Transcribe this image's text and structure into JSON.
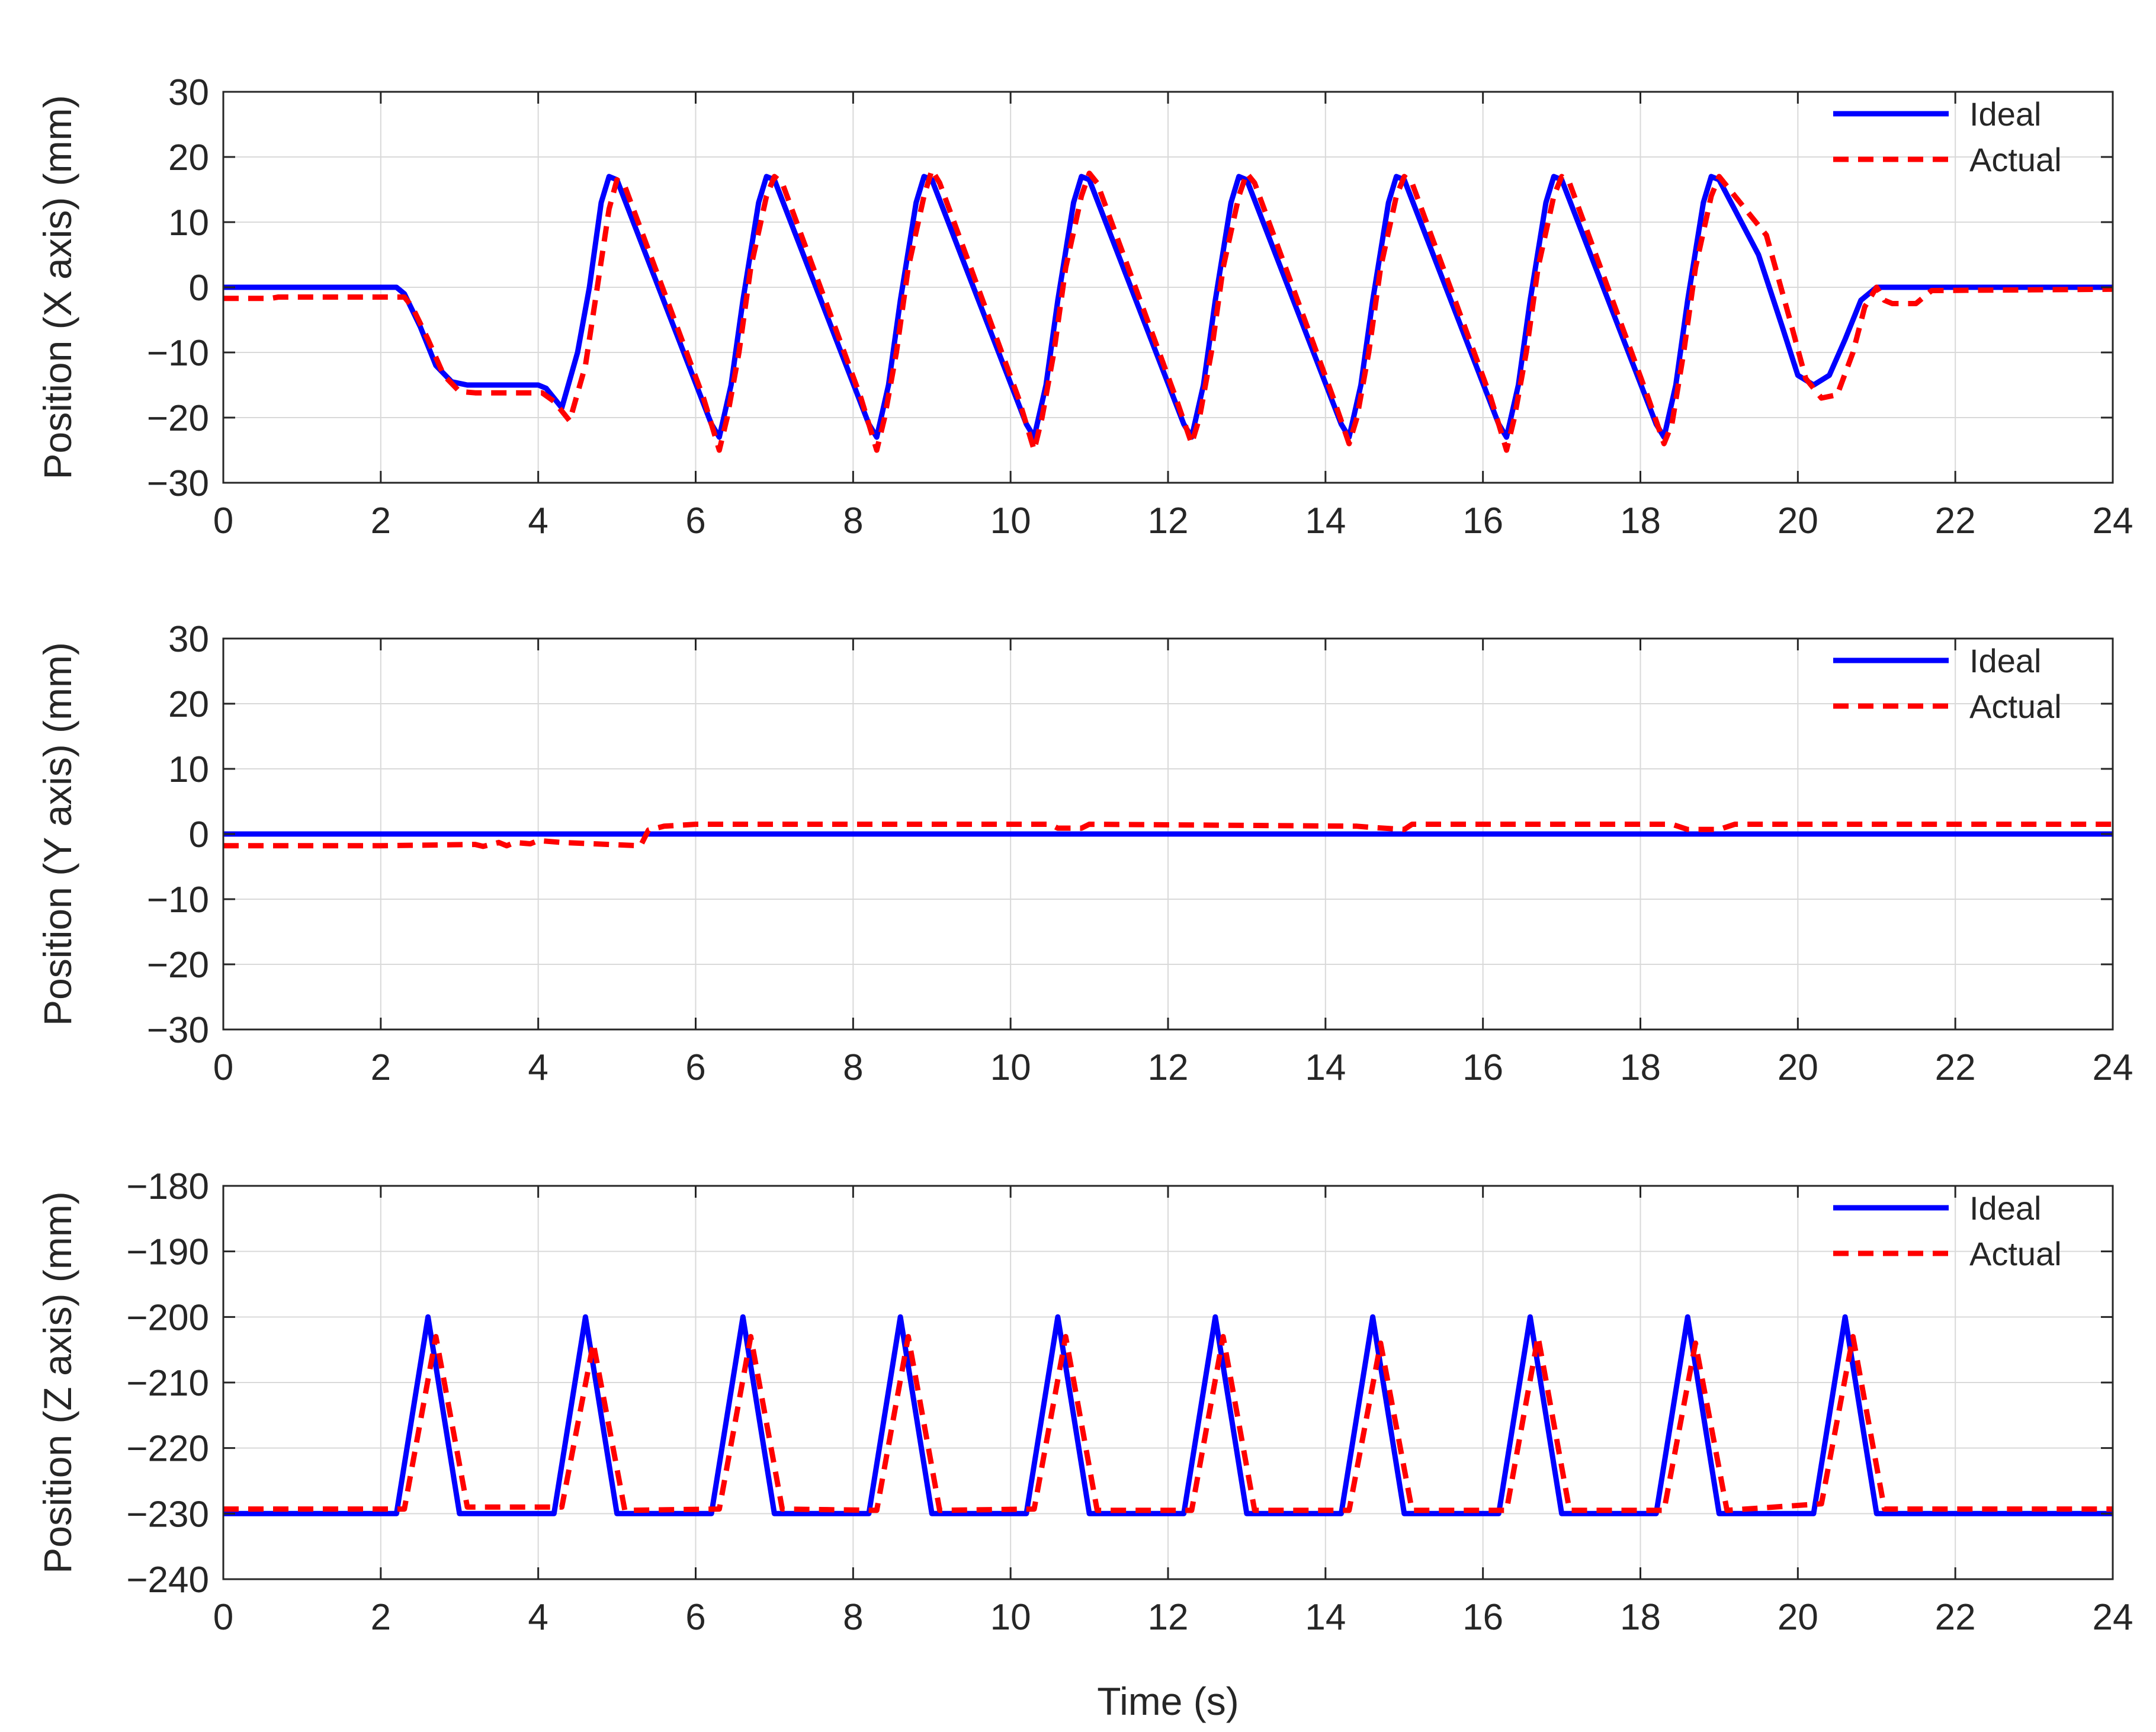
{
  "figure": {
    "xlabel": "Time (s)"
  },
  "colors": {
    "ideal": "#0000ff",
    "actual": "#ff0000",
    "grid": "#d9d9d9",
    "axis": "#262626"
  },
  "chart_data": [
    {
      "type": "line",
      "title": "",
      "xlabel": "",
      "ylabel": "Position (X axis) (mm)",
      "xlim": [
        0,
        24
      ],
      "ylim": [
        -30,
        30
      ],
      "xticks": [
        0,
        2,
        4,
        6,
        8,
        10,
        12,
        14,
        16,
        18,
        20,
        22,
        24
      ],
      "yticks": [
        30,
        20,
        10,
        0,
        -10,
        -20,
        -30
      ],
      "legend": [
        "Ideal",
        "Actual"
      ],
      "legend_position": "top-right",
      "grid": true,
      "series": [
        {
          "name": "Ideal",
          "style": "solid",
          "x": [
            0,
            2.2,
            2.3,
            2.5,
            2.7,
            2.9,
            3.1,
            4.0,
            4.1,
            4.3,
            4.5,
            4.65,
            4.8,
            4.9,
            5.0,
            6.2,
            6.3,
            6.45,
            6.6,
            6.8,
            6.9,
            7.0,
            8.2,
            8.3,
            8.45,
            8.6,
            8.8,
            8.9,
            9.0,
            10.2,
            10.3,
            10.45,
            10.6,
            10.8,
            10.9,
            11.0,
            12.2,
            12.3,
            12.45,
            12.6,
            12.8,
            12.9,
            13.0,
            14.2,
            14.3,
            14.45,
            14.6,
            14.8,
            14.9,
            15.0,
            16.2,
            16.3,
            16.45,
            16.6,
            16.8,
            16.9,
            17.0,
            18.2,
            18.3,
            18.45,
            18.6,
            18.8,
            18.9,
            19.0,
            19.5,
            19.8,
            20.0,
            20.2,
            20.4,
            20.6,
            20.8,
            21.0,
            24
          ],
          "y": [
            0,
            0,
            -1,
            -6,
            -12,
            -14.5,
            -15,
            -15,
            -15.5,
            -18.5,
            -10,
            0,
            13,
            17,
            16.5,
            -21,
            -23,
            -15,
            -2,
            13,
            17,
            16.5,
            -21,
            -23,
            -15,
            -2,
            13,
            17,
            16.5,
            -21,
            -23,
            -15,
            -2,
            13,
            17,
            16.5,
            -21,
            -23,
            -15,
            -2,
            13,
            17,
            16.5,
            -21,
            -23,
            -15,
            -2,
            13,
            17,
            16.5,
            -21,
            -23,
            -15,
            -2,
            13,
            17,
            16.5,
            -21,
            -23,
            -15,
            -2,
            13,
            17,
            16.5,
            5,
            -6,
            -13.5,
            -15,
            -13.5,
            -8,
            -2,
            0,
            0
          ]
        },
        {
          "name": "Actual",
          "style": "dashed",
          "x": [
            0,
            0.6,
            0.7,
            2.3,
            2.4,
            2.6,
            2.8,
            3.0,
            3.2,
            4.05,
            4.2,
            4.4,
            4.6,
            4.75,
            4.9,
            5.0,
            5.1,
            6.1,
            6.3,
            6.4,
            6.55,
            6.7,
            6.9,
            7.0,
            7.1,
            8.1,
            8.3,
            8.4,
            8.55,
            8.7,
            8.9,
            9.0,
            9.1,
            10.1,
            10.3,
            10.4,
            10.55,
            10.7,
            10.9,
            11.0,
            11.1,
            12.1,
            12.3,
            12.4,
            12.55,
            12.7,
            12.9,
            13.0,
            13.1,
            14.1,
            14.3,
            14.4,
            14.55,
            14.7,
            14.9,
            15.0,
            15.1,
            16.1,
            16.3,
            16.4,
            16.55,
            16.7,
            16.9,
            17.0,
            17.1,
            18.1,
            18.3,
            18.4,
            18.55,
            18.7,
            18.9,
            19.0,
            19.6,
            19.9,
            20.1,
            20.3,
            20.5,
            20.7,
            20.85,
            21.0,
            21.1,
            21.2,
            21.5,
            21.7,
            24
          ],
          "y": [
            -1.7,
            -1.7,
            -1.5,
            -1.5,
            -3,
            -8,
            -13.5,
            -16,
            -16.2,
            -16.2,
            -17.5,
            -20.5,
            -12,
            0,
            12,
            16.5,
            15.5,
            -17,
            -25,
            -20,
            -10,
            3,
            14,
            17,
            16,
            -17,
            -25,
            -20,
            -10,
            3,
            14,
            18,
            16,
            -17,
            -25,
            -20,
            -10,
            3,
            14,
            17.5,
            16,
            -17,
            -24,
            -20,
            -10,
            3,
            14,
            17.5,
            16,
            -17,
            -24,
            -20,
            -10,
            3,
            14,
            17,
            16,
            -17,
            -25,
            -20,
            -10,
            3,
            14,
            17,
            16,
            -17,
            -24,
            -21,
            -10,
            3,
            14,
            17,
            8,
            -5,
            -14,
            -17,
            -16.5,
            -10,
            -3,
            0,
            -2,
            -2.5,
            -2.5,
            -0.5,
            -0.3
          ]
        }
      ]
    },
    {
      "type": "line",
      "title": "",
      "xlabel": "",
      "ylabel": "Position (Y axis) (mm)",
      "xlim": [
        0,
        24
      ],
      "ylim": [
        -30,
        30
      ],
      "xticks": [
        0,
        2,
        4,
        6,
        8,
        10,
        12,
        14,
        16,
        18,
        20,
        22,
        24
      ],
      "yticks": [
        30,
        20,
        10,
        0,
        -10,
        -20,
        -30
      ],
      "legend": [
        "Ideal",
        "Actual"
      ],
      "legend_position": "top-right",
      "grid": true,
      "series": [
        {
          "name": "Ideal",
          "style": "solid",
          "x": [
            0,
            24
          ],
          "y": [
            0,
            0
          ]
        },
        {
          "name": "Actual",
          "style": "dashed",
          "x": [
            0,
            2.0,
            3.2,
            3.3,
            3.5,
            3.6,
            3.7,
            3.9,
            4.0,
            4.3,
            5.3,
            5.4,
            5.6,
            6.0,
            10.5,
            10.6,
            10.9,
            11.0,
            14.4,
            14.6,
            15.0,
            15.1,
            18.4,
            18.6,
            18.8,
            19.0,
            19.2,
            24
          ],
          "y": [
            -1.8,
            -1.8,
            -1.6,
            -1.9,
            -1.3,
            -1.8,
            -1.3,
            -1.5,
            -1,
            -1.3,
            -1.8,
            0.6,
            1.2,
            1.5,
            1.5,
            0.9,
            0.9,
            1.5,
            1.2,
            1.0,
            0.7,
            1.5,
            1.5,
            0.7,
            0.7,
            0.7,
            1.5,
            1.5
          ]
        }
      ]
    },
    {
      "type": "line",
      "title": "",
      "xlabel": "Time (s)",
      "ylabel": "Position (Z axis) (mm)",
      "xlim": [
        0,
        24
      ],
      "ylim": [
        -240,
        -180
      ],
      "xticks": [
        0,
        2,
        4,
        6,
        8,
        10,
        12,
        14,
        16,
        18,
        20,
        22,
        24
      ],
      "yticks": [
        -180,
        -190,
        -200,
        -210,
        -220,
        -230,
        -240
      ],
      "legend": [
        "Ideal",
        "Actual"
      ],
      "legend_position": "top-right",
      "grid": true,
      "series": [
        {
          "name": "Ideal",
          "style": "solid",
          "x": [
            0,
            2.2,
            2.6,
            3.0,
            4.2,
            4.6,
            5.0,
            6.2,
            6.6,
            7.0,
            8.2,
            8.6,
            9.0,
            10.2,
            10.6,
            11.0,
            12.2,
            12.6,
            13.0,
            14.2,
            14.6,
            15.0,
            16.2,
            16.6,
            17.0,
            18.2,
            18.6,
            19.0,
            20.2,
            20.6,
            21.0,
            24
          ],
          "y": [
            -230,
            -230,
            -200,
            -230,
            -230,
            -200,
            -230,
            -230,
            -200,
            -230,
            -230,
            -200,
            -230,
            -230,
            -200,
            -230,
            -230,
            -200,
            -230,
            -230,
            -200,
            -230,
            -230,
            -200,
            -230,
            -230,
            -200,
            -230,
            -230,
            -200,
            -230,
            -230
          ]
        },
        {
          "name": "Actual",
          "style": "dashed",
          "x": [
            0,
            2.3,
            2.7,
            3.1,
            4.3,
            4.7,
            5.1,
            6.3,
            6.7,
            7.1,
            8.3,
            8.7,
            9.1,
            10.3,
            10.7,
            11.1,
            12.3,
            12.7,
            13.1,
            14.3,
            14.7,
            15.1,
            16.3,
            16.7,
            17.1,
            18.3,
            18.7,
            19.1,
            20.3,
            20.7,
            21.1,
            24
          ],
          "y": [
            -229.3,
            -229.3,
            -203,
            -229,
            -229,
            -204,
            -229.5,
            -229.3,
            -203,
            -229.3,
            -229.5,
            -203,
            -229.5,
            -229.3,
            -203,
            -229.5,
            -229.5,
            -203,
            -229.5,
            -229.5,
            -204,
            -229.5,
            -229.5,
            -203,
            -229.5,
            -229.5,
            -204,
            -229.5,
            -228.5,
            -203,
            -229.3,
            -229.3
          ]
        }
      ]
    }
  ]
}
